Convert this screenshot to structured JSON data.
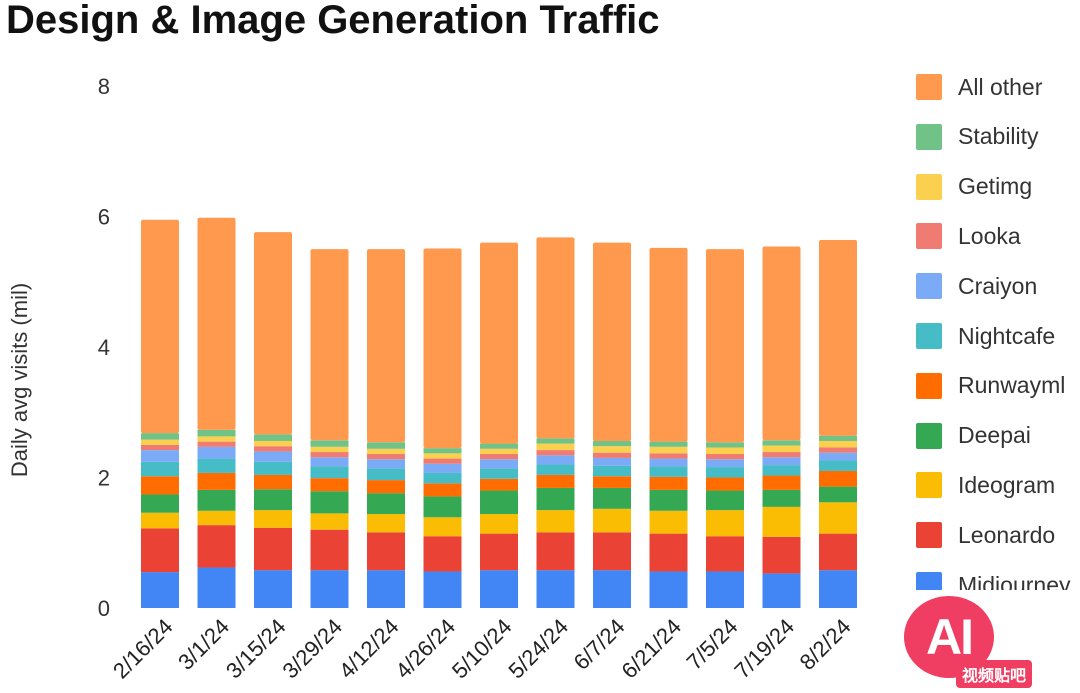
{
  "chart_data": {
    "type": "bar",
    "stacked": true,
    "title": "Design & Image Generation Traffic",
    "xlabel": "",
    "ylabel": "Daily avg visits (mil)",
    "ylim": [
      0,
      8
    ],
    "yticks": [
      "0",
      "2",
      "4",
      "6",
      "8"
    ],
    "grid": false,
    "legend_position": "right",
    "categories": [
      "2/16/24",
      "3/1/24",
      "3/15/24",
      "3/29/24",
      "4/12/24",
      "4/26/24",
      "5/10/24",
      "5/24/24",
      "6/7/24",
      "6/21/24",
      "7/5/24",
      "7/19/24",
      "8/2/24"
    ],
    "series": [
      {
        "name": "Midjourney",
        "color": "#4285f4",
        "values": [
          0.55,
          0.62,
          0.58,
          0.58,
          0.58,
          0.56,
          0.58,
          0.58,
          0.58,
          0.56,
          0.56,
          0.53,
          0.58
        ]
      },
      {
        "name": "Leonardo",
        "color": "#ea4335",
        "values": [
          0.67,
          0.65,
          0.65,
          0.62,
          0.58,
          0.54,
          0.56,
          0.58,
          0.58,
          0.58,
          0.54,
          0.56,
          0.56
        ]
      },
      {
        "name": "Ideogram",
        "color": "#fbbc04",
        "values": [
          0.24,
          0.22,
          0.27,
          0.25,
          0.28,
          0.29,
          0.3,
          0.34,
          0.36,
          0.35,
          0.4,
          0.46,
          0.48
        ]
      },
      {
        "name": "Deepai",
        "color": "#34a853",
        "values": [
          0.28,
          0.32,
          0.32,
          0.34,
          0.32,
          0.32,
          0.36,
          0.34,
          0.32,
          0.32,
          0.3,
          0.26,
          0.24
        ]
      },
      {
        "name": "Runwayml",
        "color": "#ff6d01",
        "values": [
          0.28,
          0.26,
          0.22,
          0.2,
          0.2,
          0.2,
          0.18,
          0.2,
          0.18,
          0.2,
          0.2,
          0.22,
          0.24
        ]
      },
      {
        "name": "Nightcafe",
        "color": "#46bdc6",
        "values": [
          0.22,
          0.22,
          0.2,
          0.18,
          0.18,
          0.16,
          0.16,
          0.16,
          0.16,
          0.16,
          0.16,
          0.16,
          0.16
        ]
      },
      {
        "name": "Craiyon",
        "color": "#7baaf7",
        "values": [
          0.18,
          0.18,
          0.16,
          0.14,
          0.14,
          0.14,
          0.14,
          0.14,
          0.12,
          0.12,
          0.12,
          0.12,
          0.12
        ]
      },
      {
        "name": "Looka",
        "color": "#f07b72",
        "values": [
          0.08,
          0.08,
          0.08,
          0.08,
          0.08,
          0.08,
          0.08,
          0.08,
          0.08,
          0.08,
          0.08,
          0.08,
          0.08
        ]
      },
      {
        "name": "Getimg",
        "color": "#fcd04f",
        "values": [
          0.08,
          0.08,
          0.08,
          0.08,
          0.08,
          0.08,
          0.08,
          0.1,
          0.1,
          0.1,
          0.1,
          0.1,
          0.1
        ]
      },
      {
        "name": "Stability",
        "color": "#71c287",
        "values": [
          0.1,
          0.1,
          0.1,
          0.1,
          0.1,
          0.08,
          0.08,
          0.08,
          0.08,
          0.08,
          0.08,
          0.08,
          0.08
        ]
      },
      {
        "name": "All other",
        "color": "#ff994d",
        "values": [
          3.27,
          3.25,
          3.1,
          2.93,
          2.96,
          3.06,
          3.08,
          3.08,
          3.04,
          2.97,
          2.96,
          2.97,
          3.0
        ]
      }
    ]
  },
  "watermark": {
    "badge": "AI",
    "text": "视频贴吧"
  }
}
